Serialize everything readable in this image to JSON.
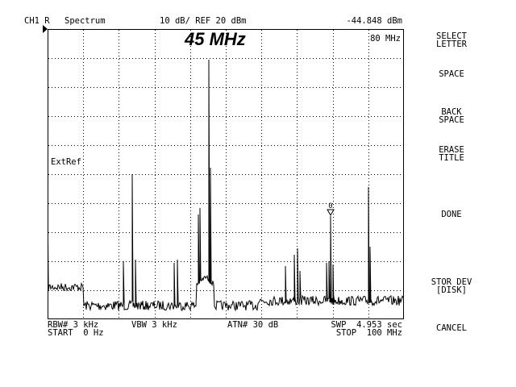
{
  "header": {
    "channel": "CH1 R",
    "mode": "Spectrum",
    "scale": "10 dB/ REF 20 dBm",
    "marker_value": "-44.848 dBm"
  },
  "screen": {
    "title": "45 MHz",
    "marker_freq": "80 MHz",
    "extref": "ExtRef",
    "marker_symbol": "0"
  },
  "footer": {
    "rbw": "RBW# 3 kHz",
    "vbw": "VBW 3 kHz",
    "atn": "ATN# 30 dB",
    "swp": "SWP  4.953 sec",
    "start": "START  0 Hz",
    "stop": "STOP  100 MHz"
  },
  "softkeys": [
    {
      "label": "SELECT\nLETTER"
    },
    {
      "label": "SPACE"
    },
    {
      "label": "BACK\nSPACE"
    },
    {
      "label": "ERASE\nTITLE"
    },
    {
      "label": "DONE"
    },
    {
      "label": "STOR DEV\n[DISK]"
    },
    {
      "label": "CANCEL"
    }
  ],
  "colors": {
    "trace": "#000000",
    "grid": "#000000",
    "background": "#ffffff"
  }
}
